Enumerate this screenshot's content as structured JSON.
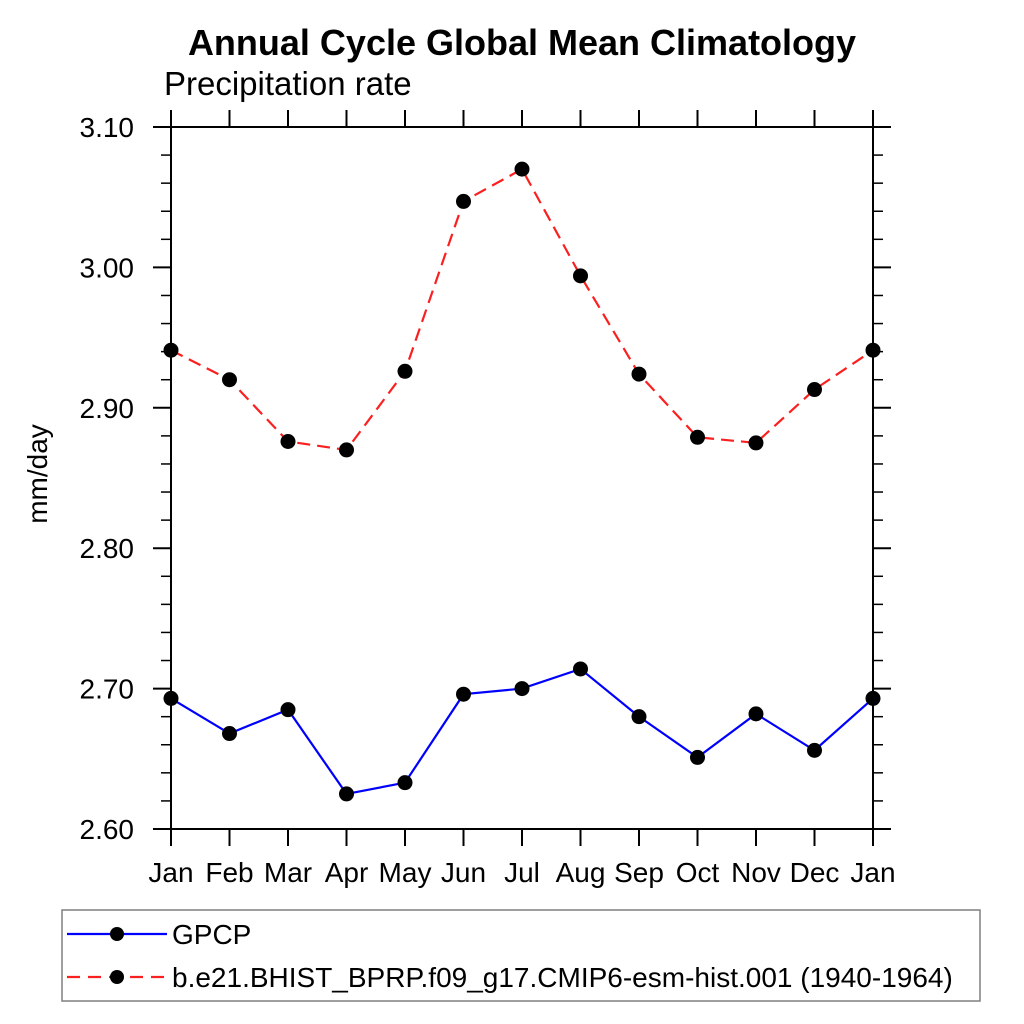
{
  "chart_data": {
    "type": "line",
    "title": "Annual Cycle Global Mean Climatology",
    "subtitle": "Precipitation rate",
    "ylabel": "mm/day",
    "ylim": [
      2.6,
      3.1
    ],
    "y_major_ticks": [
      "2.60",
      "2.70",
      "2.80",
      "2.90",
      "3.00",
      "3.10"
    ],
    "y_minor_step": 0.02,
    "categories": [
      "Jan",
      "Feb",
      "Mar",
      "Apr",
      "May",
      "Jun",
      "Jul",
      "Aug",
      "Sep",
      "Oct",
      "Nov",
      "Dec",
      "Jan"
    ],
    "series": [
      {
        "name": "GPCP",
        "style": "solid",
        "color": "#0000ff",
        "marker": "filled-circle",
        "marker_color": "#000000",
        "values": [
          2.693,
          2.668,
          2.685,
          2.625,
          2.633,
          2.696,
          2.7,
          2.714,
          2.68,
          2.651,
          2.682,
          2.656,
          2.693
        ]
      },
      {
        "name": "b.e21.BHIST_BPRP.f09_g17.CMIP6-esm-hist.001 (1940-1964)",
        "style": "dashed",
        "color": "#fb2020",
        "marker": "filled-circle",
        "marker_color": "#000000",
        "values": [
          2.941,
          2.92,
          2.876,
          2.87,
          2.926,
          3.047,
          3.07,
          2.994,
          2.924,
          2.879,
          2.875,
          2.913,
          2.941
        ]
      }
    ],
    "grid": false,
    "legend_position": "bottom-left-box"
  },
  "colors": {
    "background": "#ffffff",
    "axis": "#000000",
    "text": "#000000",
    "legend_border": "#7f7f7f"
  }
}
